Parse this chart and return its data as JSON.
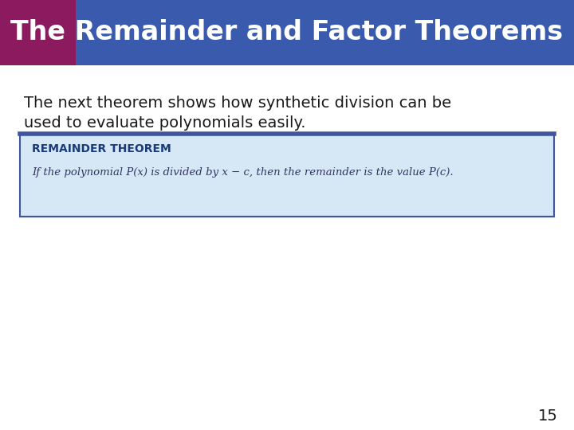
{
  "title": "The Remainder and Factor Theorems",
  "title_bg_color": "#3a5aad",
  "title_accent_color": "#8b1a5e",
  "title_text_color": "#ffffff",
  "body_bg_color": "#ffffff",
  "body_text_line1": "The next theorem shows how synthetic division can be",
  "body_text_line2": "used to evaluate polynomials easily.",
  "body_text_color": "#1a1a1a",
  "box_bg_color": "#d6e8f5",
  "box_border_color": "#4055a0",
  "box_top_border_color": "#4055a0",
  "box_label": "REMAINDER THEOREM",
  "box_label_color": "#1a3a7a",
  "box_content": "If the polynomial P(x) is divided by x − c, then the remainder is the value P(c).",
  "box_content_color": "#333366",
  "page_number": "15",
  "page_number_color": "#1a1a1a",
  "fig_width": 7.2,
  "fig_height": 5.4,
  "dpi": 100
}
